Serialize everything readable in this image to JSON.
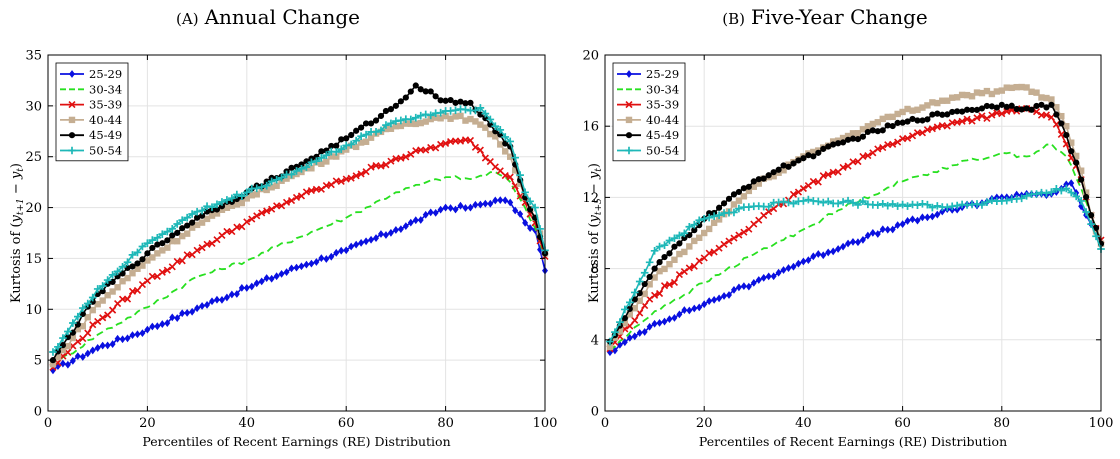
{
  "chart_data": [
    {
      "type": "line",
      "title_prefix": "(A)",
      "title": "Annual Change",
      "xlabel": "Percentiles of Recent Earnings (RE) Distribution",
      "ylabel": "Kurtosis of (y_{t+1} − y_t)",
      "ylabel_parts": {
        "pre": "Kurtosis of (",
        "y1": "y",
        "s1": "t+1",
        "minus": " − ",
        "y2": "y",
        "s2": "t",
        "post": ")"
      },
      "xlim": [
        0,
        100
      ],
      "ylim": [
        0,
        35
      ],
      "xticks": [
        0,
        20,
        40,
        60,
        80,
        100
      ],
      "yticks": [
        0,
        5,
        10,
        15,
        20,
        25,
        30,
        35
      ],
      "grid": true,
      "legend_position": "top-left",
      "series": [
        {
          "name": "25-29",
          "color": "#0a10e0",
          "marker": "diamond",
          "dash": "solid",
          "x": [
            1,
            10,
            20,
            30,
            40,
            50,
            60,
            70,
            80,
            85,
            90,
            93,
            96,
            98,
            100
          ],
          "y": [
            4.0,
            6.2,
            8.0,
            10.1,
            12.1,
            14.1,
            15.8,
            17.8,
            20.0,
            20.0,
            20.7,
            20.5,
            18.5,
            17.8,
            13.8
          ]
        },
        {
          "name": "30-34",
          "color": "#28e020",
          "marker": "none",
          "dash": "dashed",
          "x": [
            1,
            10,
            20,
            30,
            40,
            50,
            60,
            70,
            80,
            85,
            90,
            93,
            96,
            98,
            100
          ],
          "y": [
            4.5,
            7.5,
            10.2,
            13.2,
            14.8,
            17.0,
            19.0,
            21.5,
            23.0,
            22.8,
            23.5,
            22.5,
            20.0,
            18.0,
            15.0
          ]
        },
        {
          "name": "35-39",
          "color": "#e01010",
          "marker": "x",
          "dash": "solid",
          "x": [
            1,
            10,
            20,
            30,
            40,
            50,
            60,
            70,
            80,
            85,
            90,
            93,
            96,
            98,
            100
          ],
          "y": [
            4.3,
            8.8,
            12.8,
            15.8,
            18.6,
            21.0,
            22.8,
            24.8,
            26.3,
            26.6,
            24.0,
            23.0,
            20.5,
            18.5,
            15.2
          ]
        },
        {
          "name": "40-44",
          "color": "#c5ae92",
          "marker": "square",
          "dash": "solid",
          "x": [
            1,
            10,
            20,
            30,
            40,
            50,
            60,
            70,
            80,
            85,
            90,
            93,
            96,
            98,
            100
          ],
          "y": [
            4.6,
            10.5,
            14.8,
            18.3,
            20.9,
            23.3,
            25.7,
            28.0,
            29.0,
            28.7,
            27.0,
            25.0,
            21.0,
            19.0,
            15.5
          ]
        },
        {
          "name": "45-49",
          "color": "#000000",
          "marker": "circle",
          "dash": "solid",
          "x": [
            1,
            10,
            20,
            30,
            40,
            50,
            60,
            70,
            74,
            80,
            85,
            90,
            93,
            96,
            98,
            100
          ],
          "y": [
            5.0,
            11.5,
            15.5,
            19.0,
            21.5,
            24.0,
            26.8,
            30.0,
            32.0,
            30.5,
            30.3,
            27.5,
            26.0,
            21.0,
            19.0,
            15.5
          ]
        },
        {
          "name": "50-54",
          "color": "#1eb8b8",
          "marker": "plus",
          "dash": "solid",
          "x": [
            1,
            10,
            20,
            30,
            40,
            50,
            60,
            70,
            80,
            87,
            90,
            93,
            96,
            98,
            100
          ],
          "y": [
            5.8,
            12.0,
            16.5,
            19.6,
            21.5,
            23.6,
            26.1,
            28.5,
            29.5,
            29.8,
            28.0,
            26.5,
            21.5,
            20.0,
            15.8
          ]
        }
      ]
    },
    {
      "type": "line",
      "title_prefix": "(B)",
      "title": "Five-Year Change",
      "xlabel": "Percentiles of Recent Earnings (RE) Distribution",
      "ylabel": "Kurtosis of (y_{t+5} − y_t)",
      "ylabel_parts": {
        "pre": "Kurtosis of (",
        "y1": "y",
        "s1": "t+5",
        "minus": " − ",
        "y2": "y",
        "s2": "t",
        "post": ")"
      },
      "xlim": [
        0,
        100
      ],
      "ylim": [
        0,
        20
      ],
      "xticks": [
        0,
        20,
        40,
        60,
        80,
        100
      ],
      "yticks": [
        0,
        4,
        8,
        12,
        16,
        20
      ],
      "grid": true,
      "legend_position": "top-left",
      "series": [
        {
          "name": "25-29",
          "color": "#0a10e0",
          "marker": "diamond",
          "dash": "solid",
          "x": [
            1,
            10,
            20,
            30,
            40,
            50,
            60,
            70,
            80,
            85,
            90,
            94,
            96,
            98,
            100
          ],
          "y": [
            3.3,
            4.9,
            6.0,
            7.2,
            8.4,
            9.5,
            10.5,
            11.3,
            12.0,
            12.2,
            12.2,
            12.8,
            11.5,
            10.5,
            9.4
          ]
        },
        {
          "name": "30-34",
          "color": "#28e020",
          "marker": "none",
          "dash": "dashed",
          "x": [
            1,
            10,
            20,
            30,
            40,
            50,
            60,
            70,
            80,
            85,
            90,
            93,
            96,
            98,
            100
          ],
          "y": [
            3.4,
            5.6,
            7.2,
            8.8,
            10.2,
            11.7,
            12.9,
            13.8,
            14.5,
            14.3,
            15.0,
            14.3,
            12.5,
            11.0,
            9.6
          ]
        },
        {
          "name": "35-39",
          "color": "#e01010",
          "marker": "x",
          "dash": "solid",
          "x": [
            1,
            10,
            20,
            30,
            40,
            50,
            60,
            70,
            80,
            85,
            90,
            93,
            96,
            98,
            100
          ],
          "y": [
            3.5,
            6.5,
            8.6,
            10.5,
            12.5,
            14.0,
            15.3,
            16.2,
            16.7,
            17.0,
            16.5,
            15.0,
            13.0,
            11.0,
            9.6
          ]
        },
        {
          "name": "40-44",
          "color": "#c5ae92",
          "marker": "square",
          "dash": "solid",
          "x": [
            1,
            10,
            20,
            30,
            40,
            50,
            60,
            70,
            80,
            84,
            90,
            93,
            96,
            98,
            100
          ],
          "y": [
            3.6,
            7.5,
            10.0,
            12.6,
            14.3,
            15.6,
            16.8,
            17.6,
            18.0,
            18.2,
            17.5,
            16.0,
            13.5,
            11.0,
            9.4
          ]
        },
        {
          "name": "45-49",
          "color": "#000000",
          "marker": "circle",
          "dash": "solid",
          "x": [
            1,
            10,
            20,
            30,
            40,
            50,
            60,
            70,
            80,
            85,
            90,
            93,
            96,
            98,
            100
          ],
          "y": [
            3.9,
            8.0,
            10.8,
            12.9,
            14.2,
            15.3,
            16.2,
            16.8,
            17.2,
            17.0,
            17.2,
            15.5,
            13.0,
            11.0,
            9.4
          ]
        },
        {
          "name": "50-54",
          "color": "#1eb8b8",
          "marker": "plus",
          "dash": "solid",
          "x": [
            1,
            10,
            20,
            30,
            40,
            50,
            60,
            70,
            80,
            90,
            93,
            96,
            98,
            100
          ],
          "y": [
            3.9,
            9.0,
            10.8,
            11.5,
            11.8,
            11.7,
            11.6,
            11.5,
            11.8,
            12.3,
            12.5,
            11.8,
            10.5,
            9.1
          ]
        }
      ]
    }
  ]
}
